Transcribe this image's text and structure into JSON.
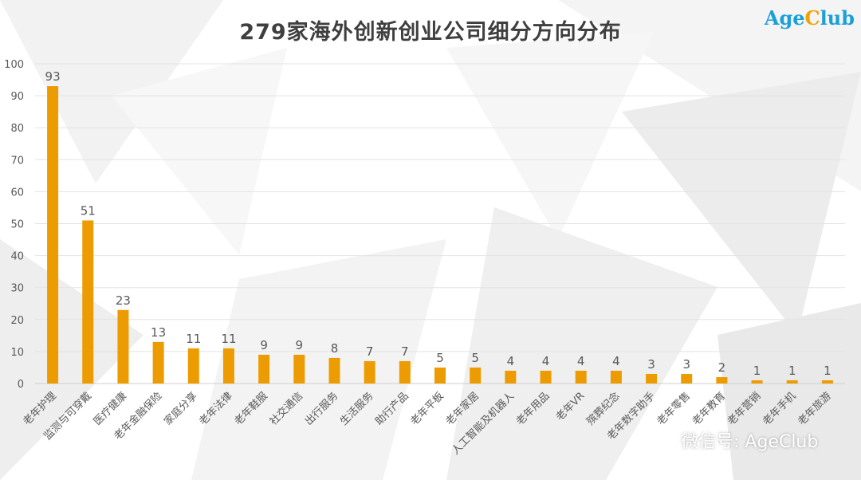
{
  "header": {
    "title": "279家海外创新创业公司细分方向分布",
    "logo_part1": "Age",
    "logo_part2": "C",
    "logo_part3": "lub"
  },
  "watermark": {
    "text": "微信号: AgeClub",
    "icon": "wechat-icon"
  },
  "colors": {
    "bar": "#ec9c00",
    "logo_blue": "#1aa0d8",
    "logo_orange": "#f2a200"
  },
  "chart_data": {
    "type": "bar",
    "categories": [
      "老年护理",
      "监测与可穿戴",
      "医疗健康",
      "老年金融保险",
      "家庭分享",
      "老年法律",
      "老年鞋服",
      "社交通信",
      "出行服务",
      "生活服务",
      "助行产品",
      "老年平板",
      "老年家居",
      "人工智能及机器人",
      "老年用品",
      "老年VR",
      "殡葬纪念",
      "老年数字助手",
      "老年零售",
      "老年教育",
      "老年营销",
      "老年手机",
      "老年旅游"
    ],
    "values": [
      93,
      51,
      23,
      13,
      11,
      11,
      9,
      9,
      8,
      7,
      7,
      5,
      5,
      4,
      4,
      4,
      4,
      3,
      3,
      2,
      1,
      1,
      1
    ],
    "yticks": [
      0,
      10,
      20,
      30,
      40,
      50,
      60,
      70,
      80,
      90,
      100
    ],
    "ylim": [
      0,
      100
    ],
    "grid": true,
    "title": "279家海外创新创业公司细分方向分布",
    "xlabel": "",
    "ylabel": ""
  }
}
